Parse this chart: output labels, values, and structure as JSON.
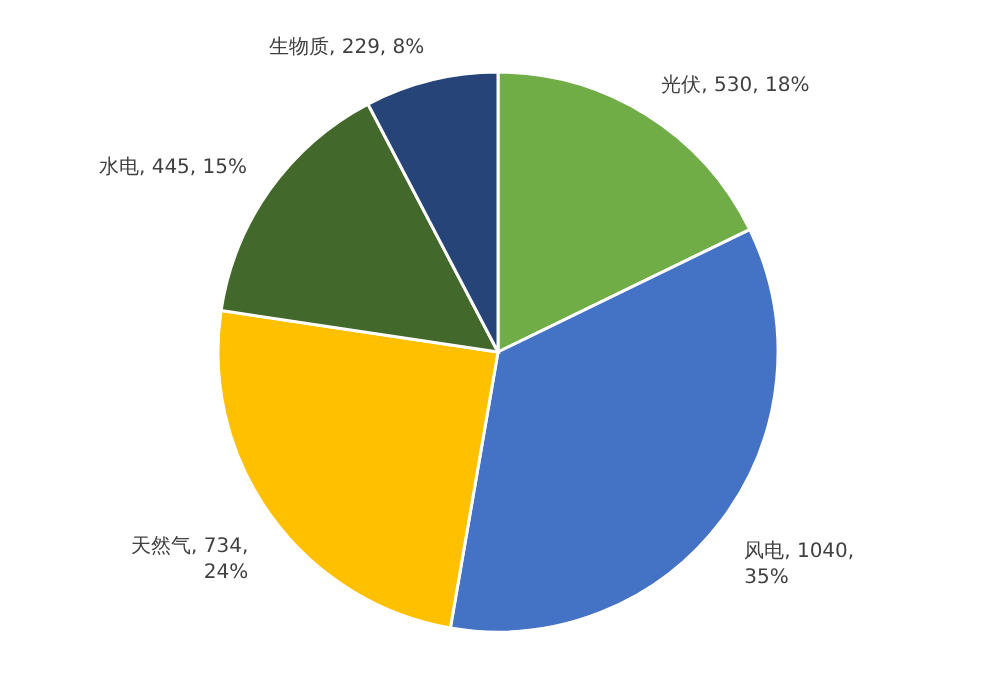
{
  "chart_data": {
    "type": "pie",
    "categories": [
      "光伏",
      "风电",
      "天然气",
      "水电",
      "生物质"
    ],
    "values": [
      530,
      1040,
      734,
      445,
      229
    ],
    "value_labels": [
      "530, 18%",
      "1040, 35%",
      "734, 24%",
      "445, 15%",
      "229, 8%"
    ],
    "colors": [
      "#70ad47",
      "#4472c4",
      "#ffc000",
      "#43682b",
      "#264478"
    ]
  }
}
